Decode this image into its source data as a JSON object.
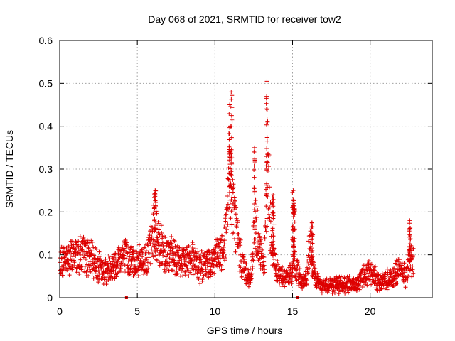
{
  "chart_data": {
    "type": "scatter",
    "title": "Day 068 of 2021, SRMTID for receiver tow2",
    "xlabel": "GPS time / hours",
    "ylabel": "SRMTID / TECUs",
    "xlim": [
      0,
      24
    ],
    "ylim": [
      0,
      0.6
    ],
    "xticks": [
      0,
      5,
      10,
      15,
      20
    ],
    "xtick_labels": [
      "0",
      "5",
      "10",
      "15",
      "20"
    ],
    "yticks": [
      0,
      0.1,
      0.2,
      0.3,
      0.4,
      0.5,
      0.6
    ],
    "ytick_labels": [
      "0",
      "0.1",
      "0.2",
      "0.3",
      "0.4",
      "0.5",
      "0.6"
    ],
    "grid": true,
    "marker": "+",
    "marker_color": "#dd0000",
    "series": [
      {
        "name": "SRMTID",
        "profile_hours": [
          0,
          0.3,
          0.6,
          1.0,
          1.5,
          2.0,
          2.4,
          2.8,
          3.2,
          3.6,
          4.0,
          4.5,
          5.0,
          5.5,
          5.9,
          6.1,
          6.3,
          6.6,
          7.0,
          7.5,
          8.0,
          8.5,
          9.0,
          9.5,
          10.0,
          10.4,
          10.7,
          11.0,
          11.3,
          11.6,
          12.0,
          12.3,
          12.6,
          12.9,
          13.2,
          13.4,
          13.6,
          13.9,
          14.2,
          14.5,
          14.8,
          15.0,
          15.3,
          15.6,
          15.9,
          16.1,
          16.4,
          16.8,
          17.2,
          17.6,
          18.0,
          18.5,
          19.0,
          19.5,
          20.0,
          20.5,
          21.0,
          21.5,
          22.0,
          22.3,
          22.6,
          22.8
        ],
        "profile_values": [
          0.08,
          0.09,
          0.09,
          0.1,
          0.1,
          0.09,
          0.08,
          0.06,
          0.07,
          0.08,
          0.1,
          0.09,
          0.08,
          0.09,
          0.12,
          0.17,
          0.13,
          0.12,
          0.1,
          0.09,
          0.08,
          0.1,
          0.07,
          0.08,
          0.09,
          0.1,
          0.15,
          0.28,
          0.18,
          0.1,
          0.06,
          0.04,
          0.18,
          0.1,
          0.08,
          0.32,
          0.15,
          0.07,
          0.05,
          0.05,
          0.05,
          0.07,
          0.06,
          0.04,
          0.04,
          0.12,
          0.05,
          0.03,
          0.03,
          0.03,
          0.03,
          0.03,
          0.03,
          0.05,
          0.06,
          0.04,
          0.04,
          0.05,
          0.07,
          0.05,
          0.1,
          0.08
        ],
        "spikes": [
          {
            "hour": 6.15,
            "value": 0.25
          },
          {
            "hour": 10.95,
            "value": 0.45
          },
          {
            "hour": 11.05,
            "value": 0.48
          },
          {
            "hour": 12.55,
            "value": 0.35
          },
          {
            "hour": 13.35,
            "value": 0.505
          },
          {
            "hour": 13.75,
            "value": 0.24
          },
          {
            "hour": 15.05,
            "value": 0.25
          },
          {
            "hour": 15.1,
            "value": 0.22
          },
          {
            "hour": 16.25,
            "value": 0.175
          },
          {
            "hour": 22.55,
            "value": 0.18
          }
        ],
        "zero_markers_hours": [
          4.3,
          15.3
        ]
      }
    ]
  }
}
